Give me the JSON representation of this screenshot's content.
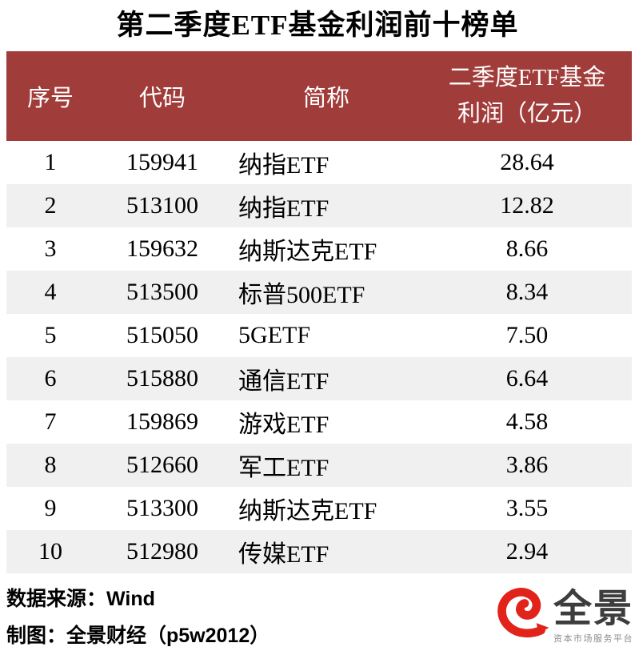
{
  "chart_data": {
    "type": "table",
    "title": "第二季度ETF基金利润前十榜单",
    "columns": [
      "序号",
      "代码",
      "简称",
      "二季度ETF基金利润（亿元）"
    ],
    "column4_lines": [
      "二季度ETF基金",
      "利润（亿元）"
    ],
    "rows": [
      {
        "rank": "1",
        "code": "159941",
        "name": "纳指ETF",
        "profit": "28.64"
      },
      {
        "rank": "2",
        "code": "513100",
        "name": "纳指ETF",
        "profit": "12.82"
      },
      {
        "rank": "3",
        "code": "159632",
        "name": "纳斯达克ETF",
        "profit": "8.66"
      },
      {
        "rank": "4",
        "code": "513500",
        "name": "标普500ETF",
        "profit": "8.34"
      },
      {
        "rank": "5",
        "code": "515050",
        "name": "5GETF",
        "profit": "7.50"
      },
      {
        "rank": "6",
        "code": "515880",
        "name": "通信ETF",
        "profit": "6.64"
      },
      {
        "rank": "7",
        "code": "159869",
        "name": "游戏ETF",
        "profit": "4.58"
      },
      {
        "rank": "8",
        "code": "512660",
        "name": "军工ETF",
        "profit": "3.86"
      },
      {
        "rank": "9",
        "code": "513300",
        "name": "纳斯达克ETF",
        "profit": "3.55"
      },
      {
        "rank": "10",
        "code": "512980",
        "name": "传媒ETF",
        "profit": "2.94"
      }
    ]
  },
  "footer": {
    "source": "数据来源：Wind",
    "credit": "制图：全景财经（p5w2012）",
    "logo": {
      "brand": "全景",
      "tagline": "资本市场服务平台",
      "icon": "quanjing-swirl-icon"
    }
  },
  "colors": {
    "header_bg": "#A03C3A",
    "header_text": "#FFFFFF",
    "row_alt_bg": "#F0F0F0",
    "logo_red": "#E2231A",
    "brand_text": "#3D3D3D",
    "tagline_text": "#8C8C8C"
  }
}
